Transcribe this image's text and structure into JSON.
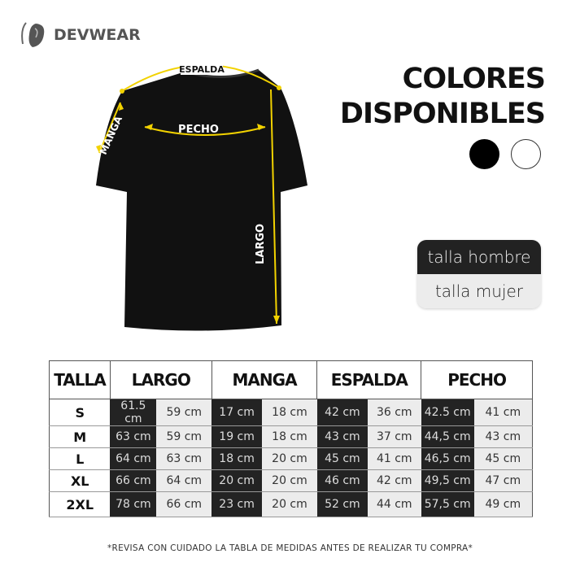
{
  "brand": {
    "name": "DEVWEAR",
    "logo_icon": "ear-logo-icon"
  },
  "shirt": {
    "labels": {
      "espalda": "ESPALDA",
      "manga": "MANGA",
      "pecho": "PECHO",
      "largo": "LARGO"
    },
    "color": "#111111",
    "measure_color": "#f2d200"
  },
  "colors": {
    "title_line1": "COLORES",
    "title_line2": "DISPONIBLES",
    "swatches": [
      "#000000",
      "#ffffff"
    ]
  },
  "size_toggle": {
    "men": "talla hombre",
    "women": "talla mujer",
    "selected": "talla hombre"
  },
  "table": {
    "headers": [
      "TALLA",
      "LARGO",
      "MANGA",
      "ESPALDA",
      "PECHO"
    ],
    "rows": [
      {
        "size": "S",
        "values": [
          "61.5 cm",
          "59 cm",
          "17 cm",
          "18 cm",
          "42 cm",
          "36 cm",
          "42.5 cm",
          "41 cm"
        ]
      },
      {
        "size": "M",
        "values": [
          "63 cm",
          "59 cm",
          "19 cm",
          "18 cm",
          "43 cm",
          "37 cm",
          "44,5 cm",
          "43 cm"
        ]
      },
      {
        "size": "L",
        "values": [
          "64 cm",
          "63 cm",
          "18 cm",
          "20 cm",
          "45 cm",
          "41 cm",
          "46,5 cm",
          "45 cm"
        ]
      },
      {
        "size": "XL",
        "values": [
          "66 cm",
          "64 cm",
          "20 cm",
          "20 cm",
          "46 cm",
          "42 cm",
          "49,5 cm",
          "47 cm"
        ]
      },
      {
        "size": "2XL",
        "values": [
          "78 cm",
          "66 cm",
          "23 cm",
          "20 cm",
          "52 cm",
          "44 cm",
          "57,5 cm",
          "49 cm"
        ]
      }
    ]
  },
  "note": "*REVISA CON CUIDADO LA TABLA DE MEDIDAS ANTES DE REALIZAR TU COMPRA*"
}
